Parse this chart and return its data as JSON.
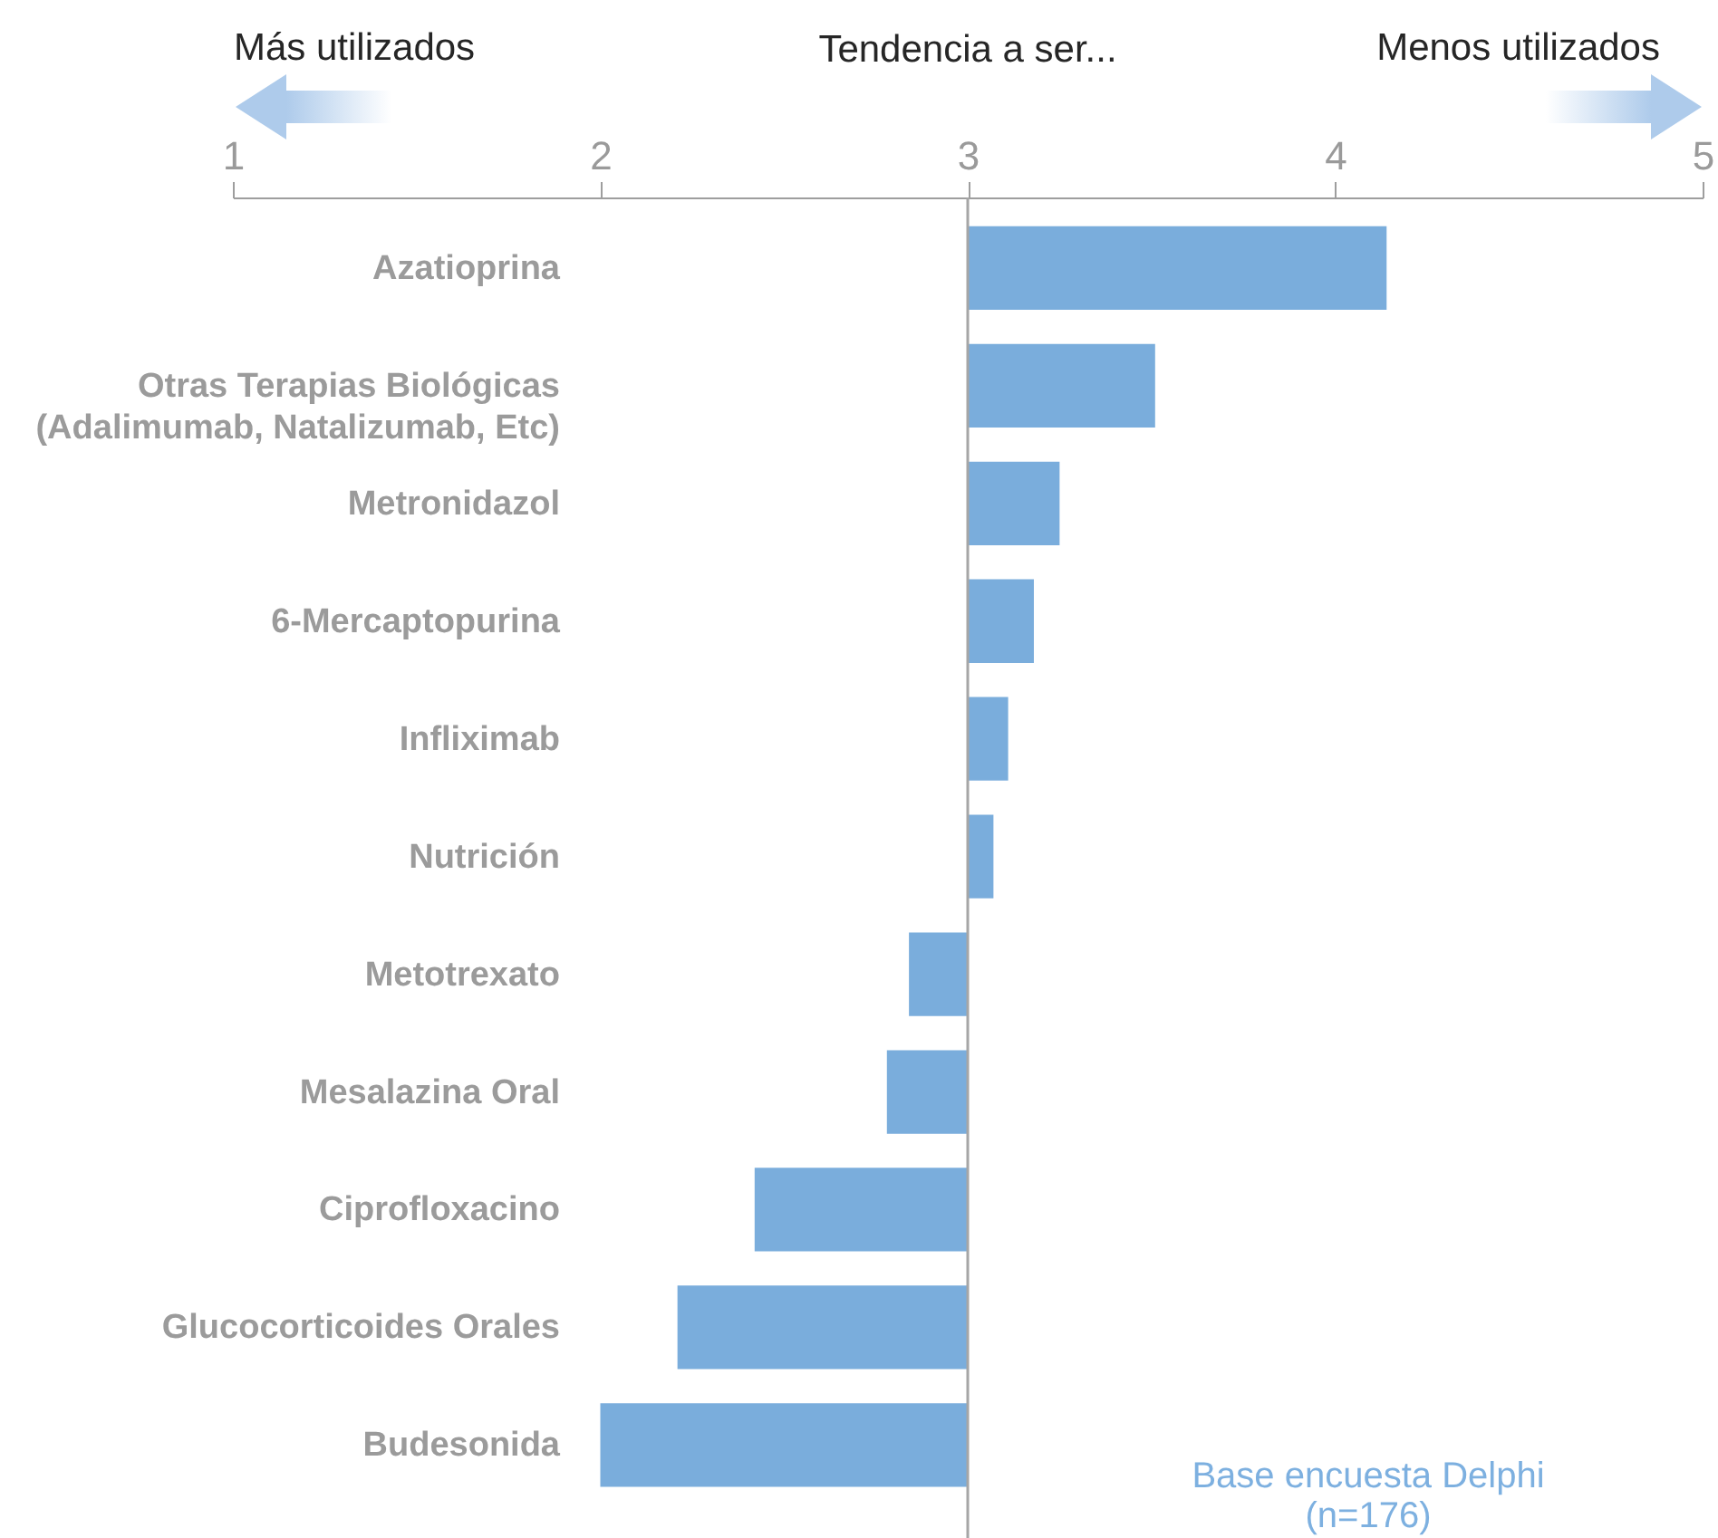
{
  "chart_data": {
    "type": "bar",
    "orientation": "horizontal",
    "title": "Tendencia a ser...",
    "categories": [
      "Azatioprina",
      "Otras Terapias Biológicas\n(Adalimumab, Natalizumab, Etc)",
      "Metronidazol",
      "6-Mercaptopurina",
      "Infliximab",
      "Nutrición",
      "Metotrexato",
      "Mesalazina Oral",
      "Ciprofloxacino",
      "Glucocorticoides Orales",
      "Budesonida"
    ],
    "values": [
      1.14,
      0.51,
      0.25,
      0.18,
      0.11,
      0.07,
      -0.16,
      -0.22,
      -0.58,
      -0.79,
      -1.0
    ],
    "base": [
      3,
      3,
      3,
      3,
      3,
      3,
      3,
      3,
      3,
      3,
      3
    ],
    "color": "#7aaddc",
    "xlim": [
      1,
      5
    ],
    "xticks": [
      1,
      2,
      3,
      4,
      5
    ],
    "ref_lines": [
      {
        "axis": "x",
        "value": 3,
        "color": "#a6a6a6"
      }
    ],
    "annotations": [
      "Más utilizados",
      "Menos utilizados",
      "Base encuesta Delphi\n(n=176)"
    ]
  }
}
